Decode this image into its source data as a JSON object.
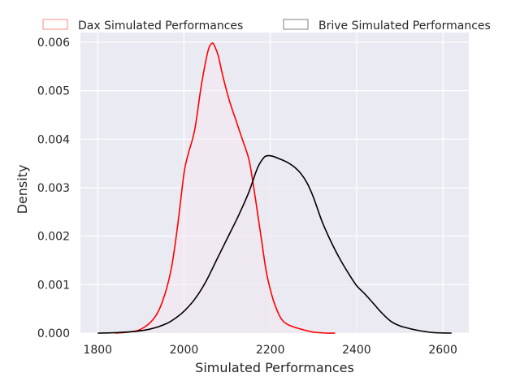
{
  "chart_data": {
    "type": "line",
    "subtype": "kde-density",
    "title": "",
    "xlabel": "Simulated Performances",
    "ylabel": "Density",
    "xlim": [
      1760,
      2660
    ],
    "ylim": [
      0,
      0.0062
    ],
    "grid": true,
    "x_ticks": [
      1800,
      2000,
      2200,
      2400,
      2600
    ],
    "y_ticks": [
      0.0,
      0.001,
      0.002,
      0.003,
      0.004,
      0.005,
      0.006
    ],
    "x_tick_labels": [
      "1800",
      "2000",
      "2200",
      "2400",
      "2600"
    ],
    "y_tick_labels": [
      "0.000",
      "0.001",
      "0.002",
      "0.003",
      "0.004",
      "0.005",
      "0.006"
    ],
    "legend": {
      "placement": "top, outside plot, horizontal",
      "entries": [
        {
          "label": "Dax Simulated Performances",
          "color": "#ff0000",
          "edge_color": "#ff8a80"
        },
        {
          "label": "Brive Simulated Performances",
          "color": "#000000",
          "edge_color": "#7f7f7f"
        }
      ]
    },
    "series": [
      {
        "name": "Dax Simulated Performances",
        "color": "#ff0000",
        "fill_color": "#f5e8f0",
        "x": [
          1840,
          1870,
          1900,
          1930,
          1950,
          1970,
          1985,
          2000,
          2010,
          2025,
          2040,
          2055,
          2065,
          2072,
          2080,
          2090,
          2105,
          2120,
          2135,
          2150,
          2160,
          2170,
          2180,
          2190,
          2200,
          2210,
          2225,
          2240,
          2260,
          2280,
          2300,
          2315,
          2330,
          2350
        ],
        "y": [
          0.0,
          2e-05,
          8e-05,
          0.0003,
          0.00065,
          0.0013,
          0.0022,
          0.0033,
          0.0037,
          0.0042,
          0.0051,
          0.0058,
          0.00598,
          0.0059,
          0.0057,
          0.0053,
          0.0048,
          0.0044,
          0.004,
          0.0036,
          0.0031,
          0.0025,
          0.0019,
          0.0013,
          0.0009,
          0.0006,
          0.0003,
          0.00018,
          0.00011,
          6e-05,
          2e-05,
          1e-05,
          0.0,
          0.0
        ]
      },
      {
        "name": "Brive Simulated Performances",
        "color": "#000000",
        "fill_color": "#ebe7f0",
        "x": [
          1800,
          1840,
          1880,
          1920,
          1960,
          1985,
          2000,
          2025,
          2050,
          2075,
          2100,
          2125,
          2150,
          2170,
          2185,
          2195,
          2205,
          2220,
          2240,
          2255,
          2270,
          2285,
          2300,
          2320,
          2340,
          2360,
          2380,
          2400,
          2420,
          2440,
          2460,
          2480,
          2500,
          2520,
          2540,
          2560,
          2580,
          2620
        ],
        "y": [
          0.0,
          1e-05,
          3e-05,
          8e-05,
          0.0002,
          0.00034,
          0.00045,
          0.0007,
          0.00105,
          0.0015,
          0.00195,
          0.0024,
          0.0029,
          0.0034,
          0.00362,
          0.00366,
          0.00365,
          0.0036,
          0.00352,
          0.00343,
          0.0033,
          0.0031,
          0.0028,
          0.0023,
          0.0019,
          0.00155,
          0.00125,
          0.00098,
          0.0008,
          0.0006,
          0.0004,
          0.00024,
          0.00015,
          0.0001,
          6e-05,
          3e-05,
          1e-05,
          0.0
        ]
      }
    ]
  }
}
